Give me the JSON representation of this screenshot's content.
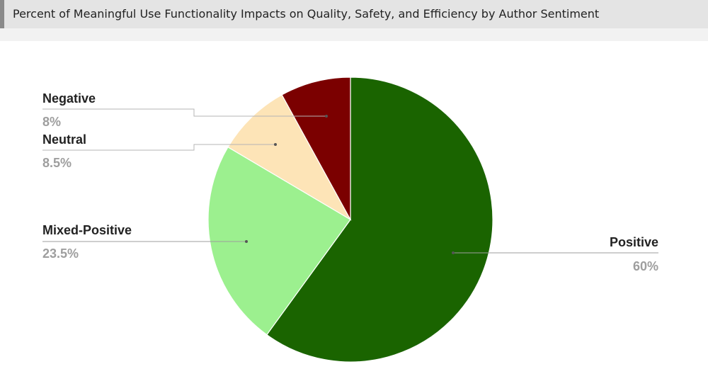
{
  "header": {
    "title": "Percent of Meaningful Use Functionality Impacts on Quality, Safety, and Efficiency by Author Sentiment"
  },
  "chart_data": {
    "type": "pie",
    "title": "Percent of Meaningful Use Functionality Impacts on Quality, Safety, and Efficiency by Author Sentiment",
    "slices": [
      {
        "name": "Positive",
        "value": 60,
        "label": "60%",
        "color": "#1a6400"
      },
      {
        "name": "Mixed-Positive",
        "value": 23.5,
        "label": "23.5%",
        "color": "#9cf08f"
      },
      {
        "name": "Neutral",
        "value": 8.5,
        "label": "8.5%",
        "color": "#fde4b7"
      },
      {
        "name": "Negative",
        "value": 8,
        "label": "8%",
        "color": "#7b0000"
      }
    ],
    "start": "12 o'clock, clockwise"
  }
}
